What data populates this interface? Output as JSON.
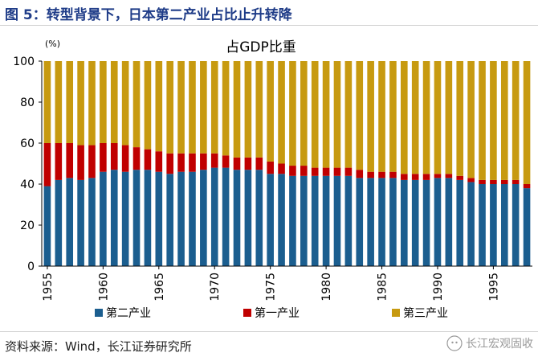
{
  "figure_title": "图 5：转型背景下，日本第二产业占比止升转降",
  "source": "资料来源：Wind，长江证券研究所",
  "watermark": "长江宏观固收",
  "colors": {
    "secondary": "#1b5e8f",
    "primary": "#c00000",
    "tertiary": "#c79a10",
    "axis": "#000000",
    "title": "#1f3c88"
  },
  "chart_data": {
    "type": "bar",
    "stacked": true,
    "title": "占GDP比重",
    "unit_label": "(%)",
    "x": [
      1955,
      1956,
      1957,
      1958,
      1959,
      1960,
      1961,
      1962,
      1963,
      1964,
      1965,
      1966,
      1967,
      1968,
      1969,
      1970,
      1971,
      1972,
      1973,
      1974,
      1975,
      1976,
      1977,
      1978,
      1979,
      1980,
      1981,
      1982,
      1983,
      1984,
      1985,
      1986,
      1987,
      1988,
      1989,
      1990,
      1991,
      1992,
      1993,
      1994,
      1995,
      1996,
      1997,
      1998
    ],
    "xticks": [
      "1955",
      "1960",
      "1965",
      "1970",
      "1975",
      "1980",
      "1985",
      "1990",
      "1995"
    ],
    "ylim": [
      0,
      100
    ],
    "yticks": [
      "0",
      "20",
      "40",
      "60",
      "80",
      "100"
    ],
    "grid": false,
    "legend_position": "bottom",
    "series": [
      {
        "name": "第二产业",
        "color": "#1b5e8f",
        "values": [
          39,
          42,
          43,
          42,
          43,
          46,
          47,
          46,
          47,
          47,
          46,
          45,
          46,
          46,
          47,
          48,
          48,
          47,
          47,
          47,
          45,
          45,
          44,
          44,
          44,
          44,
          44,
          44,
          43,
          43,
          43,
          43,
          42,
          42,
          42,
          43,
          43,
          42,
          41,
          40,
          40,
          40,
          40,
          38
        ]
      },
      {
        "name": "第一产业",
        "color": "#c00000",
        "values": [
          21,
          18,
          17,
          17,
          16,
          14,
          13,
          13,
          11,
          10,
          10,
          10,
          9,
          9,
          8,
          7,
          6,
          6,
          6,
          6,
          6,
          5,
          5,
          5,
          4,
          4,
          4,
          4,
          4,
          3,
          3,
          3,
          3,
          3,
          3,
          2,
          2,
          2,
          2,
          2,
          2,
          2,
          2,
          2
        ]
      },
      {
        "name": "第三产业",
        "color": "#c79a10",
        "values": [
          40,
          40,
          40,
          41,
          41,
          40,
          40,
          41,
          42,
          43,
          44,
          45,
          45,
          45,
          45,
          45,
          46,
          47,
          47,
          47,
          49,
          50,
          51,
          51,
          52,
          52,
          52,
          52,
          53,
          54,
          54,
          54,
          55,
          55,
          55,
          55,
          55,
          56,
          57,
          58,
          58,
          58,
          58,
          60
        ]
      }
    ],
    "legend_order": [
      "第二产业",
      "第一产业",
      "第三产业"
    ]
  }
}
